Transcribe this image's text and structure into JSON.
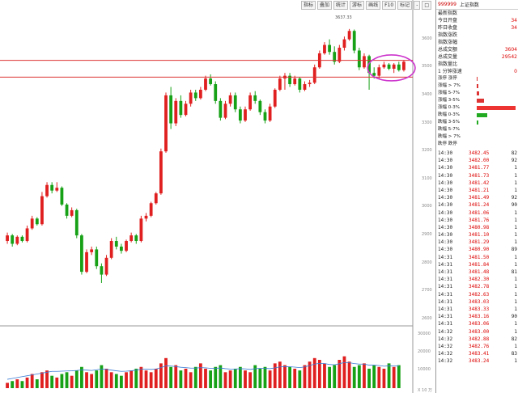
{
  "toolbar": [
    "指标",
    "叠加",
    "统计",
    "游标",
    "画线",
    "F10",
    "标记",
    "-",
    "□"
  ],
  "chart_data": {
    "type": "candlestick",
    "peak_label": "3637.33",
    "price_axis_ticks": [
      "3600",
      "3500",
      "3400",
      "3300",
      "3200",
      "3100",
      "3000",
      "2900",
      "2800",
      "2700",
      "2600"
    ],
    "volume_axis_ticks": [
      "30000",
      "20000",
      "10000",
      "X 10 万"
    ],
    "horizontal_lines": [
      3525,
      3465
    ],
    "candles": [
      {
        "o": 2880,
        "c": 2900,
        "h": 2910,
        "l": 2870
      },
      {
        "o": 2900,
        "c": 2870,
        "h": 2905,
        "l": 2860
      },
      {
        "o": 2870,
        "c": 2895,
        "h": 2900,
        "l": 2865
      },
      {
        "o": 2895,
        "c": 2880,
        "h": 2900,
        "l": 2875
      },
      {
        "o": 2880,
        "c": 2925,
        "h": 2935,
        "l": 2875
      },
      {
        "o": 2925,
        "c": 2960,
        "h": 2970,
        "l": 2920
      },
      {
        "o": 2960,
        "c": 2940,
        "h": 2965,
        "l": 2935
      },
      {
        "o": 2940,
        "c": 3040,
        "h": 3055,
        "l": 2935
      },
      {
        "o": 3040,
        "c": 3080,
        "h": 3090,
        "l": 3035
      },
      {
        "o": 3080,
        "c": 3060,
        "h": 3090,
        "l": 3050
      },
      {
        "o": 3060,
        "c": 3070,
        "h": 3090,
        "l": 3055
      },
      {
        "o": 3070,
        "c": 3010,
        "h": 3075,
        "l": 3005
      },
      {
        "o": 3010,
        "c": 2970,
        "h": 3015,
        "l": 2960
      },
      {
        "o": 2970,
        "c": 2990,
        "h": 3000,
        "l": 2965
      },
      {
        "o": 2990,
        "c": 2900,
        "h": 2995,
        "l": 2890
      },
      {
        "o": 2900,
        "c": 2770,
        "h": 2905,
        "l": 2760
      },
      {
        "o": 2770,
        "c": 2840,
        "h": 2850,
        "l": 2765
      },
      {
        "o": 2840,
        "c": 2850,
        "h": 2860,
        "l": 2830
      },
      {
        "o": 2850,
        "c": 2790,
        "h": 2860,
        "l": 2780
      },
      {
        "o": 2790,
        "c": 2760,
        "h": 2800,
        "l": 2730
      },
      {
        "o": 2760,
        "c": 2820,
        "h": 2830,
        "l": 2755
      },
      {
        "o": 2820,
        "c": 2880,
        "h": 2890,
        "l": 2815
      },
      {
        "o": 2880,
        "c": 2860,
        "h": 2895,
        "l": 2850
      },
      {
        "o": 2860,
        "c": 2845,
        "h": 2870,
        "l": 2835
      },
      {
        "o": 2845,
        "c": 2880,
        "h": 2885,
        "l": 2840
      },
      {
        "o": 2880,
        "c": 2900,
        "h": 2910,
        "l": 2875
      },
      {
        "o": 2900,
        "c": 2880,
        "h": 2905,
        "l": 2870
      },
      {
        "o": 2880,
        "c": 2960,
        "h": 2970,
        "l": 2875
      },
      {
        "o": 2960,
        "c": 2970,
        "h": 2980,
        "l": 2950
      },
      {
        "o": 2970,
        "c": 3015,
        "h": 3020,
        "l": 2965
      },
      {
        "o": 3015,
        "c": 3050,
        "h": 3055,
        "l": 3010
      },
      {
        "o": 3050,
        "c": 3200,
        "h": 3210,
        "l": 3045
      },
      {
        "o": 3200,
        "c": 3400,
        "h": 3410,
        "l": 3195
      },
      {
        "o": 3400,
        "c": 3300,
        "h": 3430,
        "l": 3280
      },
      {
        "o": 3300,
        "c": 3380,
        "h": 3390,
        "l": 3290
      },
      {
        "o": 3380,
        "c": 3330,
        "h": 3400,
        "l": 3320
      },
      {
        "o": 3330,
        "c": 3370,
        "h": 3380,
        "l": 3325
      },
      {
        "o": 3370,
        "c": 3410,
        "h": 3420,
        "l": 3360
      },
      {
        "o": 3410,
        "c": 3390,
        "h": 3420,
        "l": 3380
      },
      {
        "o": 3390,
        "c": 3420,
        "h": 3430,
        "l": 3385
      },
      {
        "o": 3420,
        "c": 3460,
        "h": 3470,
        "l": 3415
      },
      {
        "o": 3460,
        "c": 3440,
        "h": 3475,
        "l": 3435
      },
      {
        "o": 3440,
        "c": 3380,
        "h": 3450,
        "l": 3370
      },
      {
        "o": 3380,
        "c": 3320,
        "h": 3390,
        "l": 3310
      },
      {
        "o": 3320,
        "c": 3370,
        "h": 3380,
        "l": 3315
      },
      {
        "o": 3370,
        "c": 3400,
        "h": 3410,
        "l": 3360
      },
      {
        "o": 3400,
        "c": 3350,
        "h": 3410,
        "l": 3340
      },
      {
        "o": 3350,
        "c": 3310,
        "h": 3360,
        "l": 3300
      },
      {
        "o": 3310,
        "c": 3350,
        "h": 3360,
        "l": 3305
      },
      {
        "o": 3350,
        "c": 3400,
        "h": 3410,
        "l": 3345
      },
      {
        "o": 3400,
        "c": 3380,
        "h": 3415,
        "l": 3370
      },
      {
        "o": 3380,
        "c": 3340,
        "h": 3385,
        "l": 3330
      },
      {
        "o": 3340,
        "c": 3310,
        "h": 3350,
        "l": 3300
      },
      {
        "o": 3310,
        "c": 3360,
        "h": 3370,
        "l": 3305
      },
      {
        "o": 3360,
        "c": 3420,
        "h": 3425,
        "l": 3355
      },
      {
        "o": 3420,
        "c": 3460,
        "h": 3470,
        "l": 3415
      },
      {
        "o": 3460,
        "c": 3470,
        "h": 3480,
        "l": 3420
      },
      {
        "o": 3470,
        "c": 3440,
        "h": 3480,
        "l": 3430
      },
      {
        "o": 3440,
        "c": 3460,
        "h": 3470,
        "l": 3435
      },
      {
        "o": 3460,
        "c": 3420,
        "h": 3465,
        "l": 3410
      },
      {
        "o": 3420,
        "c": 3440,
        "h": 3450,
        "l": 3415
      },
      {
        "o": 3440,
        "c": 3445,
        "h": 3455,
        "l": 3430
      },
      {
        "o": 3445,
        "c": 3500,
        "h": 3510,
        "l": 3440
      },
      {
        "o": 3500,
        "c": 3550,
        "h": 3560,
        "l": 3495
      },
      {
        "o": 3550,
        "c": 3580,
        "h": 3590,
        "l": 3545
      },
      {
        "o": 3580,
        "c": 3555,
        "h": 3600,
        "l": 3545
      },
      {
        "o": 3555,
        "c": 3520,
        "h": 3575,
        "l": 3510
      },
      {
        "o": 3520,
        "c": 3570,
        "h": 3580,
        "l": 3515
      },
      {
        "o": 3570,
        "c": 3600,
        "h": 3610,
        "l": 3560
      },
      {
        "o": 3600,
        "c": 3630,
        "h": 3637,
        "l": 3595
      },
      {
        "o": 3630,
        "c": 3560,
        "h": 3635,
        "l": 3550
      },
      {
        "o": 3560,
        "c": 3500,
        "h": 3570,
        "l": 3490
      },
      {
        "o": 3500,
        "c": 3540,
        "h": 3550,
        "l": 3495
      },
      {
        "o": 3540,
        "c": 3480,
        "h": 3545,
        "l": 3420
      },
      {
        "o": 3480,
        "c": 3470,
        "h": 3500,
        "l": 3460
      },
      {
        "o": 3470,
        "c": 3500,
        "h": 3510,
        "l": 3460
      },
      {
        "o": 3500,
        "c": 3510,
        "h": 3520,
        "l": 3495
      },
      {
        "o": 3510,
        "c": 3495,
        "h": 3515,
        "l": 3490
      },
      {
        "o": 3495,
        "c": 3510,
        "h": 3515,
        "l": 3480
      },
      {
        "o": 3510,
        "c": 3490,
        "h": 3520,
        "l": 3485
      },
      {
        "o": 3490,
        "c": 3520,
        "h": 3525,
        "l": 3485
      }
    ],
    "volumes": [
      3,
      4,
      5,
      4,
      6,
      8,
      5,
      9,
      10,
      7,
      6,
      8,
      9,
      7,
      10,
      12,
      9,
      8,
      10,
      13,
      11,
      9,
      8,
      7,
      9,
      10,
      11,
      12,
      10,
      9,
      11,
      14,
      17,
      12,
      13,
      10,
      11,
      9,
      12,
      14,
      11,
      10,
      12,
      13,
      9,
      10,
      11,
      12,
      10,
      9,
      13,
      11,
      12,
      10,
      14,
      15,
      13,
      12,
      11,
      10,
      13,
      15,
      17,
      16,
      14,
      12,
      13,
      16,
      18,
      15,
      12,
      13,
      14,
      11,
      13,
      12,
      11,
      14,
      12,
      13
    ],
    "volume_ma": [
      5,
      5.5,
      6,
      6.5,
      7,
      7.5,
      8,
      8.5,
      9,
      9.5,
      9.5,
      9.6,
      9.7,
      9.8,
      10,
      10.3,
      10.2,
      10,
      10.4,
      10.8,
      10.6,
      10.2,
      9.8,
      9.5,
      9.6,
      9.8,
      10.2,
      10.7,
      10.8,
      10.6,
      10.8,
      11.6,
      12.6,
      12.5,
      12.2,
      11.8,
      11.6,
      11.3,
      11.3,
      11.6,
      11.5,
      11.2,
      11.2,
      11.4,
      11,
      10.8,
      10.8,
      11,
      10.9,
      10.6,
      11,
      11.2,
      11.2,
      11,
      11.5,
      12,
      12.2,
      12.1,
      11.9,
      11.6,
      12,
      12.8,
      13.6,
      14,
      13.9,
      13.4,
      13.2,
      13.8,
      14.5,
      14.4,
      13.9,
      13.6,
      13.6,
      13,
      13,
      12.8,
      12.4,
      12.6,
      12.5,
      12.6
    ]
  },
  "info_panel": {
    "code": "999999",
    "name": "上证指数",
    "stats": [
      {
        "label": "最新指数",
        "value": ""
      },
      {
        "label": "今日开盘",
        "value": "34"
      },
      {
        "label": "昨日收盘",
        "value": "34"
      },
      {
        "label": "指数涨跌",
        "value": ""
      },
      {
        "label": "指数涨幅",
        "value": ""
      },
      {
        "label": "总成交额",
        "value": "3604"
      },
      {
        "label": "总成交量",
        "value": "29542"
      },
      {
        "label": "指数量比",
        "value": ""
      },
      {
        "label": "1 分钟涨速",
        "value": "0"
      }
    ],
    "distribution": [
      {
        "label": "涨停 涨停",
        "color": "#d33",
        "pct": 0.02
      },
      {
        "label": "涨幅 > 7%",
        "color": "#d33",
        "pct": 0.04
      },
      {
        "label": "涨幅 5-7%",
        "color": "#d33",
        "pct": 0.06
      },
      {
        "label": "涨幅 3-5%",
        "color": "#d33",
        "pct": 0.18
      },
      {
        "label": "涨幅 0-3%",
        "color": "#e33",
        "pct": 1.0
      },
      {
        "label": "跌幅 0-3%",
        "color": "#2a2",
        "pct": 0.28
      },
      {
        "label": "跌幅 3-5%",
        "color": "#2a2",
        "pct": 0.04
      },
      {
        "label": "跌幅 5-7%",
        "color": "#2a2",
        "pct": 0.0
      },
      {
        "label": "跌幅 > 7%",
        "color": "#2a2",
        "pct": 0.0
      },
      {
        "label": "跌停 跌停",
        "color": "#2a2",
        "pct": 0.0
      }
    ],
    "trades": [
      {
        "time": "14:30",
        "price": "3482.45",
        "qty": "82"
      },
      {
        "time": "14:30",
        "price": "3482.00",
        "qty": "92"
      },
      {
        "time": "14:30",
        "price": "3481.77",
        "qty": "1"
      },
      {
        "time": "14:30",
        "price": "3481.73",
        "qty": "1"
      },
      {
        "time": "14:30",
        "price": "3481.42",
        "qty": "1"
      },
      {
        "time": "14:30",
        "price": "3481.21",
        "qty": "1"
      },
      {
        "time": "14:30",
        "price": "3481.49",
        "qty": "92"
      },
      {
        "time": "14:30",
        "price": "3481.24",
        "qty": "90"
      },
      {
        "time": "14:30",
        "price": "3481.06",
        "qty": "1"
      },
      {
        "time": "14:30",
        "price": "3481.76",
        "qty": "1"
      },
      {
        "time": "14:30",
        "price": "3480.98",
        "qty": "1"
      },
      {
        "time": "14:30",
        "price": "3481.10",
        "qty": "1"
      },
      {
        "time": "14:30",
        "price": "3481.29",
        "qty": "1"
      },
      {
        "time": "14:30",
        "price": "3480.90",
        "qty": "89"
      },
      {
        "time": "14:31",
        "price": "3481.50",
        "qty": "1"
      },
      {
        "time": "14:31",
        "price": "3481.84",
        "qty": "1"
      },
      {
        "time": "14:31",
        "price": "3481.48",
        "qty": "81"
      },
      {
        "time": "14:31",
        "price": "3482.30",
        "qty": "1"
      },
      {
        "time": "14:31",
        "price": "3482.78",
        "qty": "1"
      },
      {
        "time": "14:31",
        "price": "3482.63",
        "qty": "1"
      },
      {
        "time": "14:31",
        "price": "3483.03",
        "qty": "1"
      },
      {
        "time": "14:31",
        "price": "3483.33",
        "qty": "1"
      },
      {
        "time": "14:31",
        "price": "3483.16",
        "qty": "90"
      },
      {
        "time": "14:31",
        "price": "3483.06",
        "qty": "1"
      },
      {
        "time": "14:32",
        "price": "3483.00",
        "qty": "1"
      },
      {
        "time": "14:32",
        "price": "3482.88",
        "qty": "82"
      },
      {
        "time": "14:32",
        "price": "3482.76",
        "qty": "1"
      },
      {
        "time": "14:32",
        "price": "3483.41",
        "qty": "83"
      },
      {
        "time": "14:32",
        "price": "3483.24",
        "qty": "1"
      }
    ]
  }
}
